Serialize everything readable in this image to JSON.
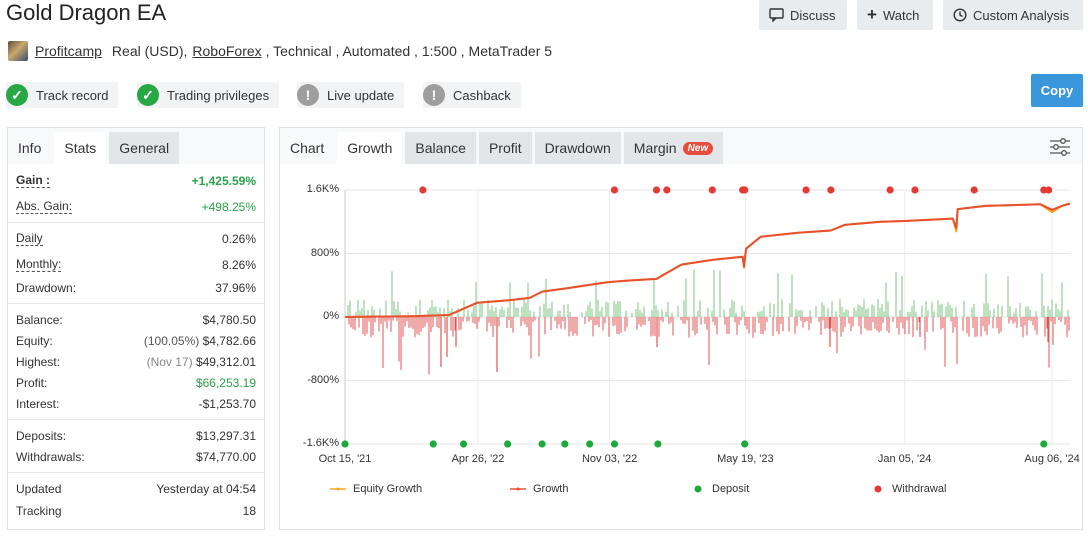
{
  "title": "Gold Dragon EA",
  "actions": {
    "discuss": "Discuss",
    "watch": "Watch",
    "custom_analysis": "Custom Analysis",
    "copy": "Copy"
  },
  "meta": {
    "author": "Profitcamp",
    "account": "Real (USD),",
    "broker": "RoboForex",
    "rest": ", Technical , Automated , 1:500 , MetaTrader 5"
  },
  "badges": {
    "track_record": "Track record",
    "trading_privileges": "Trading privileges",
    "live_update": "Live update",
    "cashback": "Cashback"
  },
  "left_tabs": {
    "info": "Info",
    "stats": "Stats",
    "general": "General"
  },
  "stats": {
    "gain_label": "Gain :",
    "gain": "+1,425.59%",
    "abs_gain_label": "Abs. Gain:",
    "abs_gain": "+498.25%",
    "daily_label": "Daily",
    "daily": "0.26%",
    "monthly_label": "Monthly:",
    "monthly": "8.26%",
    "drawdown_label": "Drawdown:",
    "drawdown": "37.96%",
    "balance_label": "Balance:",
    "balance": "$4,780.50",
    "equity_label": "Equity:",
    "equity_pct": "(100.05%)",
    "equity": "$4,782.66",
    "highest_label": "Highest:",
    "highest_date": "(Nov 17)",
    "highest": "$49,312.01",
    "profit_label": "Profit:",
    "profit": "$66,253.19",
    "interest_label": "Interest:",
    "interest": "-$1,253.70",
    "deposits_label": "Deposits:",
    "deposits": "$13,297.31",
    "withdrawals_label": "Withdrawals:",
    "withdrawals": "$74,770.00",
    "updated_label": "Updated",
    "updated": "Yesterday at 04:54",
    "tracking_label": "Tracking",
    "tracking": "18"
  },
  "chart_tabs": {
    "chart": "Chart",
    "growth": "Growth",
    "balance": "Balance",
    "profit": "Profit",
    "drawdown": "Drawdown",
    "margin": "Margin",
    "new_tag": "New"
  },
  "colors": {
    "growth": "#e8502f",
    "equity": "#f5a623",
    "deposit": "#1aab3c",
    "withdrawal": "#e53935",
    "bar_pos": "#7cc47f",
    "bar_neg": "#e05555",
    "accent": "#3a97db"
  },
  "chart_data": {
    "type": "line",
    "title": "",
    "ylim": [
      -1600,
      1600
    ],
    "yticks": [
      {
        "v": 1600,
        "label": "1.6K%"
      },
      {
        "v": 800,
        "label": "800%"
      },
      {
        "v": 0,
        "label": "0%"
      },
      {
        "v": -800,
        "label": "-800%"
      },
      {
        "v": -1600,
        "label": "-1.6K%"
      }
    ],
    "x_domain": [
      "2021-10-15",
      "2024-09-01"
    ],
    "xticks": [
      {
        "date": "2021-10-15",
        "label": "Oct 15, '21"
      },
      {
        "date": "2022-04-26",
        "label": "Apr 26, '22"
      },
      {
        "date": "2022-11-03",
        "label": "Nov 03, '22"
      },
      {
        "date": "2023-05-19",
        "label": "May 19, '23"
      },
      {
        "date": "2024-01-05",
        "label": "Jan 05, '24"
      },
      {
        "date": "2024-08-06",
        "label": "Aug 06, '24"
      }
    ],
    "series": [
      {
        "name": "Equity Growth",
        "values": [
          [
            "2021-10-15",
            0
          ],
          [
            "2022-01-20",
            10
          ],
          [
            "2022-03-15",
            25
          ],
          [
            "2022-04-25",
            180
          ],
          [
            "2022-06-10",
            210
          ],
          [
            "2022-07-10",
            240
          ],
          [
            "2022-07-28",
            320
          ],
          [
            "2022-09-01",
            360
          ],
          [
            "2022-10-01",
            400
          ],
          [
            "2022-11-01",
            440
          ],
          [
            "2022-12-01",
            460
          ],
          [
            "2023-01-10",
            480
          ],
          [
            "2023-02-15",
            660
          ],
          [
            "2023-04-01",
            720
          ],
          [
            "2023-05-15",
            760
          ],
          [
            "2023-05-17",
            620
          ],
          [
            "2023-05-20",
            860
          ],
          [
            "2023-06-10",
            1010
          ],
          [
            "2023-08-01",
            1060
          ],
          [
            "2023-09-20",
            1090
          ],
          [
            "2023-10-10",
            1160
          ],
          [
            "2023-12-01",
            1200
          ],
          [
            "2024-01-05",
            1210
          ],
          [
            "2024-03-15",
            1240
          ],
          [
            "2024-03-20",
            1080
          ],
          [
            "2024-03-22",
            1360
          ],
          [
            "2024-05-01",
            1400
          ],
          [
            "2024-07-20",
            1420
          ],
          [
            "2024-08-06",
            1320
          ],
          [
            "2024-08-20",
            1400
          ],
          [
            "2024-09-01",
            1430
          ]
        ]
      },
      {
        "name": "Growth",
        "values": [
          [
            "2021-10-15",
            0
          ],
          [
            "2022-01-20",
            10
          ],
          [
            "2022-03-15",
            25
          ],
          [
            "2022-04-25",
            180
          ],
          [
            "2022-06-10",
            210
          ],
          [
            "2022-07-10",
            240
          ],
          [
            "2022-07-28",
            320
          ],
          [
            "2022-09-01",
            360
          ],
          [
            "2022-10-01",
            400
          ],
          [
            "2022-11-01",
            440
          ],
          [
            "2022-12-01",
            460
          ],
          [
            "2023-01-10",
            480
          ],
          [
            "2023-02-15",
            660
          ],
          [
            "2023-04-01",
            720
          ],
          [
            "2023-05-15",
            760
          ],
          [
            "2023-05-17",
            640
          ],
          [
            "2023-05-20",
            860
          ],
          [
            "2023-06-10",
            1010
          ],
          [
            "2023-08-01",
            1060
          ],
          [
            "2023-09-20",
            1090
          ],
          [
            "2023-10-10",
            1160
          ],
          [
            "2023-12-01",
            1200
          ],
          [
            "2024-01-05",
            1210
          ],
          [
            "2024-03-15",
            1240
          ],
          [
            "2024-03-20",
            1120
          ],
          [
            "2024-03-22",
            1360
          ],
          [
            "2024-05-01",
            1400
          ],
          [
            "2024-07-20",
            1420
          ],
          [
            "2024-08-06",
            1350
          ],
          [
            "2024-08-20",
            1400
          ],
          [
            "2024-09-01",
            1430
          ]
        ]
      },
      {
        "name": "Deposit",
        "dates": [
          "2021-10-15",
          "2022-02-20",
          "2022-04-05",
          "2022-06-08",
          "2022-07-28",
          "2022-08-30",
          "2022-10-05",
          "2022-11-10",
          "2023-01-12",
          "2023-05-18",
          "2024-07-25"
        ]
      },
      {
        "name": "Withdrawal",
        "dates": [
          "2022-02-05",
          "2022-11-10",
          "2023-01-10",
          "2023-01-25",
          "2023-04-01",
          "2023-05-15",
          "2023-05-18",
          "2023-08-15",
          "2023-09-20",
          "2023-12-15",
          "2024-01-20",
          "2024-04-15",
          "2024-07-25",
          "2024-08-01"
        ]
      }
    ]
  }
}
